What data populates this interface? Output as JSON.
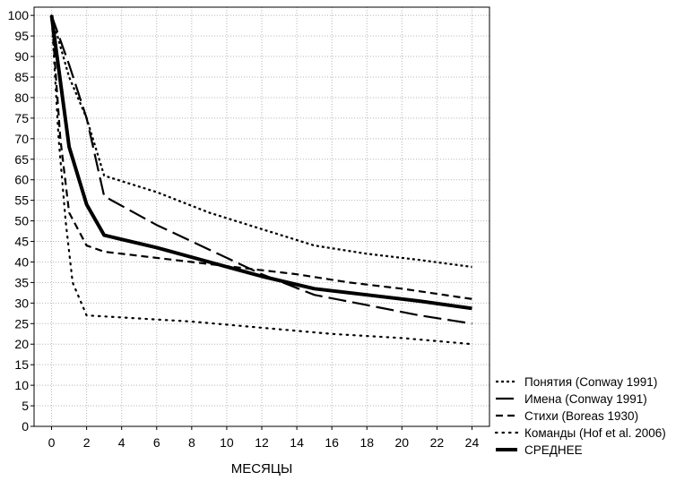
{
  "chart_data": {
    "type": "line",
    "xlabel": "МЕСЯЦЫ",
    "ylabel": "",
    "xlim": [
      -1,
      25
    ],
    "ylim": [
      0,
      102
    ],
    "xticks": [
      0,
      2,
      4,
      6,
      8,
      10,
      12,
      14,
      16,
      18,
      20,
      22,
      24
    ],
    "yticks": [
      0,
      5,
      10,
      15,
      20,
      25,
      30,
      35,
      40,
      45,
      50,
      55,
      60,
      65,
      70,
      75,
      80,
      85,
      90,
      95,
      100
    ],
    "grid": true,
    "legend": "bottom-right outside",
    "series": [
      {
        "name": "Понятия (Conway 1991)",
        "style": "short-dash",
        "x": [
          0,
          1,
          2,
          3,
          6,
          9,
          12,
          15,
          18,
          21,
          24
        ],
        "y": [
          100,
          85,
          75,
          61,
          57,
          52,
          48,
          44,
          42,
          40.5,
          38.8
        ]
      },
      {
        "name": "Имена (Conway 1991)",
        "style": "long-dash",
        "x": [
          0,
          1,
          2,
          3,
          6,
          9,
          12,
          15,
          18,
          21,
          24
        ],
        "y": [
          100,
          88,
          75,
          56,
          49,
          43,
          37,
          32,
          29.5,
          27,
          25
        ]
      },
      {
        "name": "Стихи (Boreas 1930)",
        "style": "dash",
        "x": [
          0,
          0.5,
          1,
          2,
          3,
          5,
          8,
          11,
          14,
          17,
          20,
          24
        ],
        "y": [
          100,
          70,
          52,
          44,
          42.5,
          41.5,
          40,
          38.5,
          37,
          35,
          33.5,
          31
        ]
      },
      {
        "name": "Команды (Hof et al. 2006)",
        "style": "dot",
        "x": [
          0,
          0.4,
          0.8,
          1.2,
          2,
          4,
          8,
          12,
          16,
          20,
          24
        ],
        "y": [
          100,
          70,
          50,
          35,
          27,
          26.5,
          25.5,
          24,
          22.5,
          21.5,
          20
        ]
      },
      {
        "name": "СРЕДНЕЕ",
        "style": "solid-bold",
        "x": [
          0,
          1,
          2,
          3,
          6,
          9,
          12,
          15,
          18,
          21,
          24
        ],
        "y": [
          100,
          68,
          54,
          46.5,
          43.5,
          40,
          36.5,
          33.5,
          32,
          30.5,
          28.7
        ]
      }
    ]
  }
}
